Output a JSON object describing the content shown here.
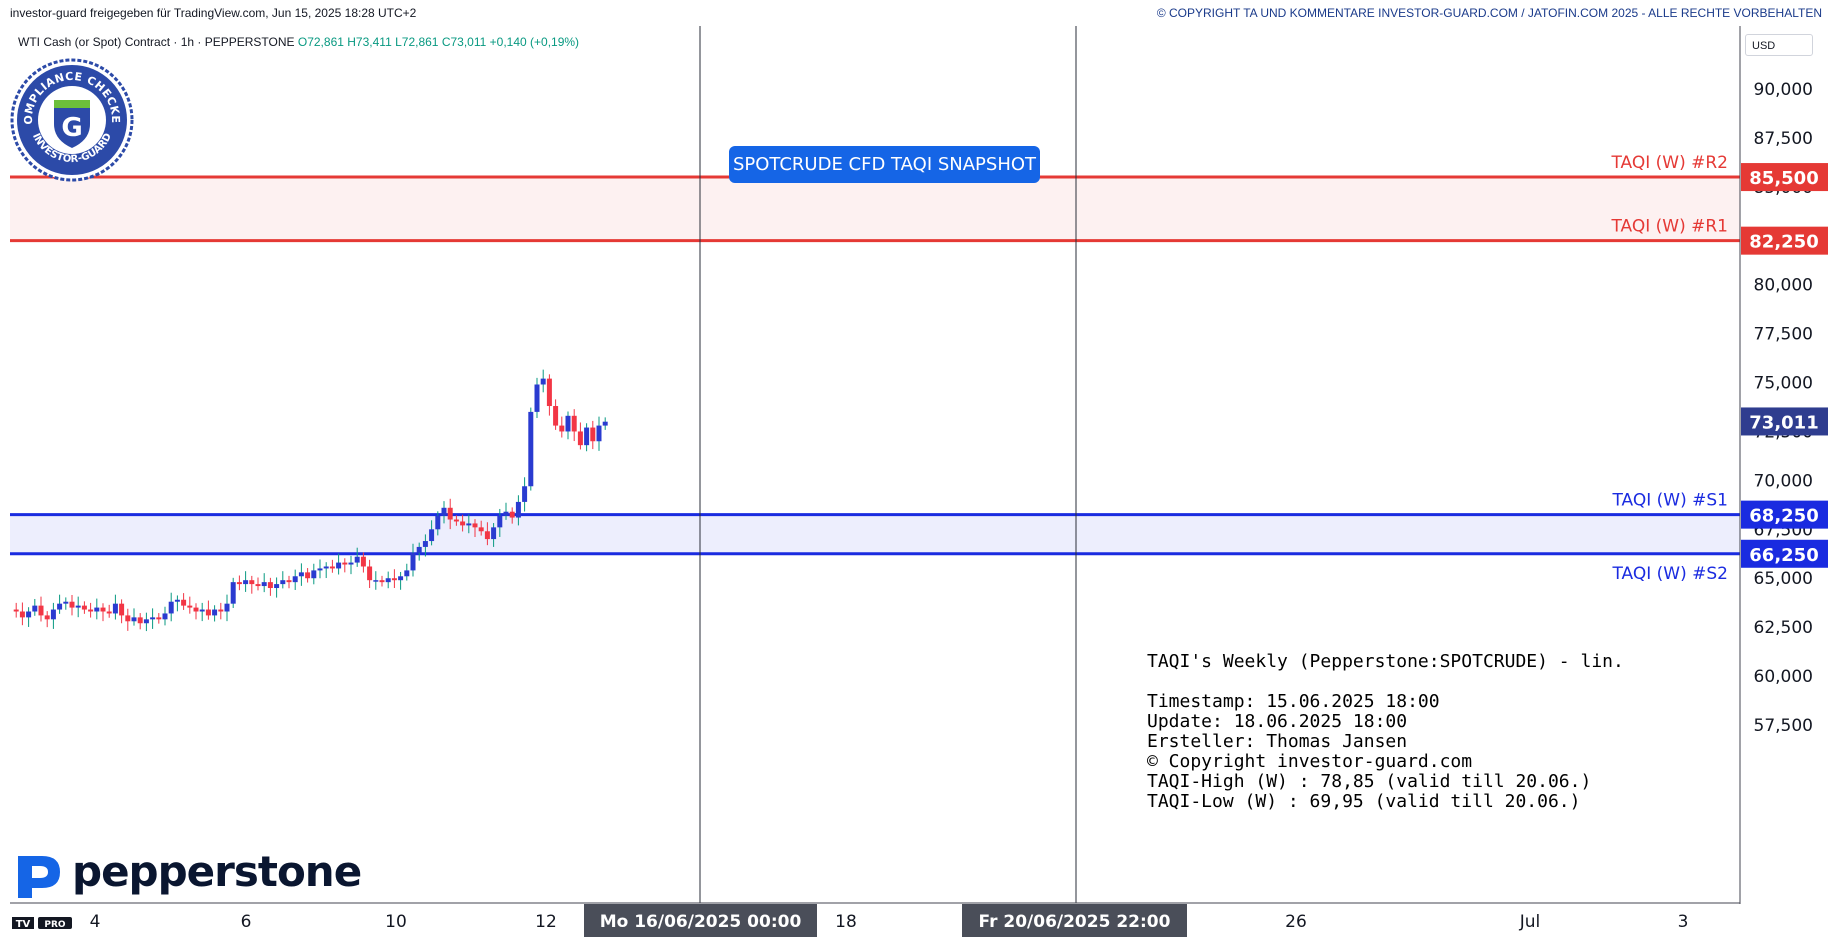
{
  "header": {
    "left_text": "investor-guard freigegeben für TradingView.com, Jun 15, 2025 18:28 UTC+2",
    "right_text": "© COPYRIGHT TA UND KOMMENTARE INVESTOR-GUARD.COM / JATOFIN.COM 2025 - ALLE RECHTE VORBEHALTEN"
  },
  "legend": {
    "symbol": "WTI Cash (or Spot) Contract · 1h · PEPPERSTONE",
    "open": "O72,861",
    "high": "H73,411",
    "low": "L72,861",
    "close": "C73,011",
    "change": "+0,140 (+0,19%)"
  },
  "currency_button": "USD",
  "badge": {
    "ring_text_top": "COMPLIANCE CHECKED",
    "ring_text_bottom": "INVESTOR-GUARD",
    "letter": "G"
  },
  "snapshot_button": "SPOTCRUDE CFD TAQI SNAPSHOT",
  "info_box": {
    "title": "TAQI's Weekly (Pepperstone:SPOTCRUDE) - lin.",
    "lines": [
      "Timestamp: 15.06.2025 18:00",
      "Update: 18.06.2025 18:00",
      "Ersteller: Thomas Jansen",
      "© Copyright investor-guard.com",
      "TAQI-High (W) : 78,85 (valid till 20.06.)",
      "TAQI-Low (W) : 69,95 (valid till 20.06.)"
    ]
  },
  "brand": {
    "name": "pepperstone",
    "tv_logo": "TV",
    "tv_pro": "PRO"
  },
  "colors": {
    "resistance": "#e53935",
    "support": "#1a2be0",
    "up": "#089981",
    "down": "#f23645",
    "candle_up_body": "#2a3bd0",
    "last_price_bg": "#2f3d8f",
    "snapshot_bg": "#1565e6"
  },
  "chart_data": {
    "type": "candlestick",
    "title": "",
    "ylim": [
      55000,
      92500
    ],
    "y_ticks": [
      "90,000",
      "87,500",
      "85,000",
      "82,500",
      "80,000",
      "77,500",
      "75,000",
      "72,500",
      "70,000",
      "67,500",
      "65,000",
      "62,500",
      "60,000",
      "57,500"
    ],
    "x_ticks": [
      "4",
      "6",
      "10",
      "12",
      "18",
      "26",
      "Jul",
      "3"
    ],
    "x_highlight_labels": [
      {
        "label": "Mo 16/06/2025   00:00"
      },
      {
        "label": "Fr 20/06/2025   22:00"
      }
    ],
    "levels": [
      {
        "name": "TAQI (W) #R2",
        "value": 85500,
        "label": "85,500",
        "kind": "resistance"
      },
      {
        "name": "TAQI (W) #R1",
        "value": 82250,
        "label": "82,250",
        "kind": "resistance"
      },
      {
        "name": "TAQI (W) #S1",
        "value": 68250,
        "label": "68,250",
        "kind": "support"
      },
      {
        "name": "TAQI (W) #S2",
        "value": 66250,
        "label": "66,250",
        "kind": "support"
      }
    ],
    "last_price": {
      "value": 73011,
      "label": "73,011"
    },
    "close_path": [
      [
        0,
        63400
      ],
      [
        4,
        63300
      ],
      [
        8,
        63000
      ],
      [
        12,
        63300
      ],
      [
        16,
        63600
      ],
      [
        20,
        63100
      ],
      [
        24,
        62900
      ],
      [
        28,
        63400
      ],
      [
        32,
        63700
      ],
      [
        36,
        63800
      ],
      [
        40,
        63500
      ],
      [
        44,
        63600
      ],
      [
        48,
        63400
      ],
      [
        52,
        63300
      ],
      [
        56,
        63500
      ],
      [
        60,
        63300
      ],
      [
        64,
        63200
      ],
      [
        68,
        63700
      ],
      [
        72,
        63100
      ],
      [
        76,
        62800
      ],
      [
        80,
        63000
      ],
      [
        84,
        62700
      ],
      [
        88,
        62900
      ],
      [
        92,
        63000
      ],
      [
        96,
        62900
      ],
      [
        100,
        63200
      ],
      [
        104,
        63800
      ],
      [
        108,
        63900
      ],
      [
        112,
        63600
      ],
      [
        116,
        63500
      ],
      [
        120,
        63300
      ],
      [
        124,
        63400
      ],
      [
        128,
        63100
      ],
      [
        132,
        63400
      ],
      [
        136,
        63300
      ],
      [
        140,
        63700
      ],
      [
        144,
        64800
      ],
      [
        148,
        64700
      ],
      [
        152,
        64900
      ],
      [
        156,
        64700
      ],
      [
        160,
        64600
      ],
      [
        164,
        64800
      ],
      [
        168,
        64500
      ],
      [
        172,
        64700
      ],
      [
        176,
        64900
      ],
      [
        180,
        64800
      ],
      [
        184,
        65100
      ],
      [
        188,
        65300
      ],
      [
        192,
        65000
      ],
      [
        196,
        65400
      ],
      [
        200,
        65500
      ],
      [
        204,
        65600
      ],
      [
        208,
        65500
      ],
      [
        212,
        65800
      ],
      [
        216,
        65700
      ],
      [
        220,
        65800
      ],
      [
        224,
        66100
      ],
      [
        228,
        65600
      ],
      [
        232,
        64900
      ],
      [
        236,
        64900
      ],
      [
        240,
        64800
      ],
      [
        244,
        65000
      ],
      [
        248,
        64900
      ],
      [
        252,
        65100
      ],
      [
        256,
        65400
      ],
      [
        260,
        66300
      ],
      [
        264,
        66600
      ],
      [
        268,
        66900
      ],
      [
        272,
        67500
      ],
      [
        276,
        68200
      ],
      [
        280,
        68600
      ],
      [
        284,
        68000
      ],
      [
        288,
        67900
      ],
      [
        292,
        67700
      ],
      [
        296,
        67800
      ],
      [
        300,
        67600
      ],
      [
        304,
        67400
      ],
      [
        308,
        67000
      ],
      [
        312,
        67600
      ],
      [
        316,
        68200
      ],
      [
        320,
        68400
      ],
      [
        324,
        68100
      ],
      [
        328,
        68900
      ],
      [
        332,
        69700
      ],
      [
        336,
        73500
      ],
      [
        340,
        74900
      ],
      [
        344,
        75200
      ],
      [
        348,
        73800
      ],
      [
        352,
        72800
      ],
      [
        356,
        72500
      ],
      [
        360,
        73300
      ],
      [
        364,
        72500
      ],
      [
        368,
        71800
      ],
      [
        372,
        72700
      ],
      [
        376,
        72000
      ],
      [
        380,
        72800
      ],
      [
        384,
        73000
      ]
    ]
  }
}
